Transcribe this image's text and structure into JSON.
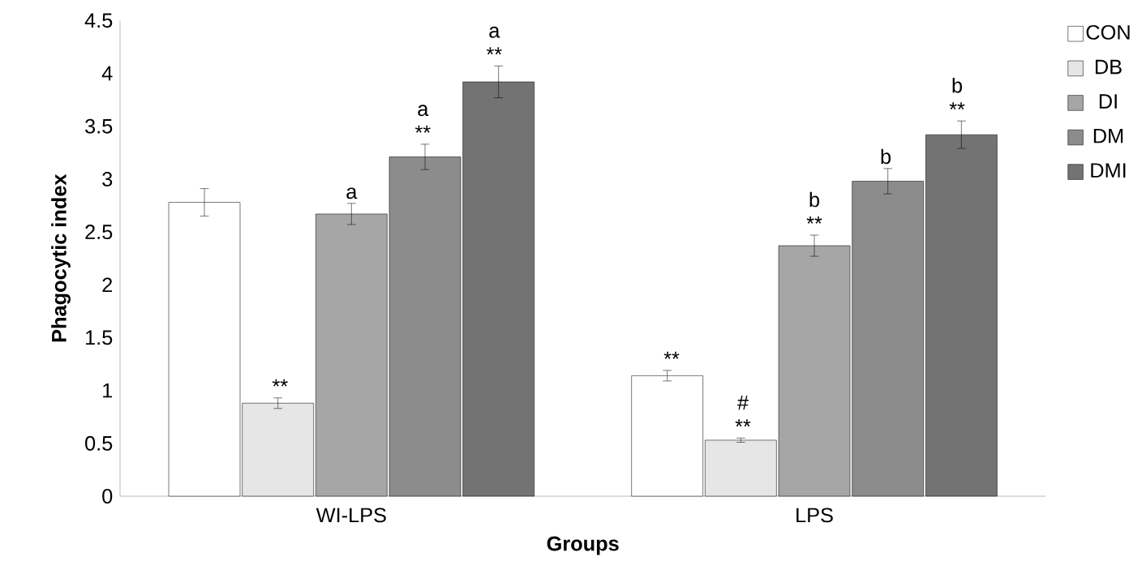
{
  "chart_data": {
    "type": "bar",
    "xlabel": "Groups",
    "ylabel": "Phagocytic index",
    "categories": [
      "WI-LPS",
      "LPS"
    ],
    "series": [
      {
        "name": "CON",
        "color": "#ffffff",
        "values": [
          2.78,
          1.14
        ],
        "errors": [
          0.13,
          0.05
        ],
        "value_labels": [
          null,
          "**"
        ]
      },
      {
        "name": "DB",
        "color": "#e6e6e6",
        "values": [
          0.88,
          0.53
        ],
        "errors": [
          0.05,
          0.02
        ],
        "value_labels": [
          "**",
          "# **"
        ]
      },
      {
        "name": "DI",
        "color": "#a6a6a6",
        "values": [
          2.67,
          2.37
        ],
        "errors": [
          0.1,
          0.1
        ],
        "value_labels": [
          "a",
          "b **"
        ]
      },
      {
        "name": "DM",
        "color": "#8c8c8c",
        "values": [
          3.21,
          2.98
        ],
        "errors": [
          0.12,
          0.12
        ],
        "value_labels": [
          "a **",
          "b"
        ]
      },
      {
        "name": "DMI",
        "color": "#737373",
        "values": [
          3.92,
          3.42
        ],
        "errors": [
          0.15,
          0.13
        ],
        "value_labels": [
          "a **",
          "b **"
        ]
      }
    ],
    "ylim": [
      0,
      4.5
    ],
    "yticks": [
      0,
      0.5,
      1,
      1.5,
      2,
      2.5,
      3,
      3.5,
      4,
      4.5
    ],
    "grid": false,
    "legend": "top right"
  }
}
